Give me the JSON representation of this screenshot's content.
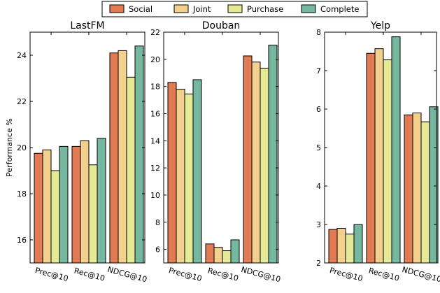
{
  "legend": [
    "Social",
    "Joint",
    "Purchase",
    "Complete"
  ],
  "colors": {
    "Social": "#e07b54",
    "Joint": "#f2d18e",
    "Purchase": "#e4ea96",
    "Complete": "#76b89f"
  },
  "ylabel": "Performance %",
  "chart_data": [
    {
      "type": "bar",
      "title": "LastFM",
      "categories": [
        "Prec@10",
        "Rec@10",
        "NDCG@10"
      ],
      "ylim": [
        15,
        25
      ],
      "yticks": [
        16,
        18,
        20,
        22,
        24
      ],
      "ylabel": "Performance %",
      "legend_position": "top-center",
      "series": [
        {
          "name": "Social",
          "values": [
            19.75,
            20.05,
            24.1
          ]
        },
        {
          "name": "Joint",
          "values": [
            19.9,
            20.3,
            24.2
          ]
        },
        {
          "name": "Purchase",
          "values": [
            19.0,
            19.25,
            23.05
          ]
        },
        {
          "name": "Complete",
          "values": [
            20.05,
            20.4,
            24.4
          ]
        }
      ]
    },
    {
      "type": "bar",
      "title": "Douban",
      "categories": [
        "Prec@10",
        "Rec@10",
        "NDCG@10"
      ],
      "ylim": [
        5,
        22
      ],
      "yticks": [
        6,
        8,
        10,
        12,
        14,
        16,
        18,
        20,
        22
      ],
      "series": [
        {
          "name": "Social",
          "values": [
            18.3,
            6.4,
            20.25
          ]
        },
        {
          "name": "Joint",
          "values": [
            17.8,
            6.15,
            19.8
          ]
        },
        {
          "name": "Purchase",
          "values": [
            17.45,
            5.9,
            19.35
          ]
        },
        {
          "name": "Complete",
          "values": [
            18.5,
            6.7,
            21.05
          ]
        }
      ]
    },
    {
      "type": "bar",
      "title": "Yelp",
      "categories": [
        "Prec@10",
        "Rec@10",
        "NDCG@10"
      ],
      "ylim": [
        2,
        8
      ],
      "yticks": [
        2,
        3,
        4,
        5,
        6,
        7,
        8
      ],
      "series": [
        {
          "name": "Social",
          "values": [
            2.87,
            7.45,
            5.85
          ]
        },
        {
          "name": "Joint",
          "values": [
            2.9,
            7.57,
            5.9
          ]
        },
        {
          "name": "Purchase",
          "values": [
            2.75,
            7.28,
            5.67
          ]
        },
        {
          "name": "Complete",
          "values": [
            3.0,
            7.88,
            6.06
          ]
        }
      ]
    }
  ]
}
